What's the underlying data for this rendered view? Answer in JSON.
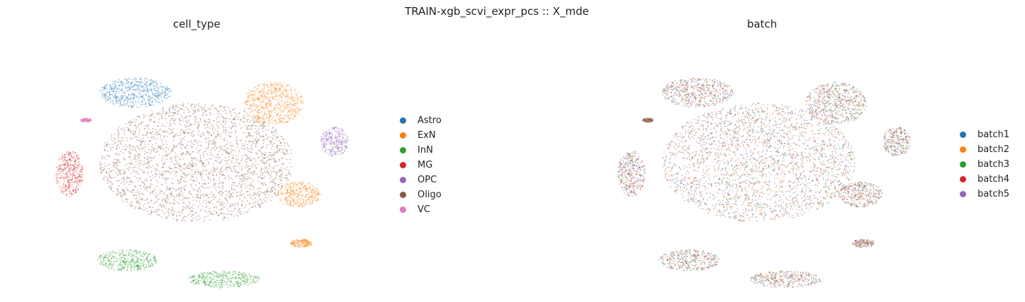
{
  "figure": {
    "suptitle": "TRAIN-xgb_scvi_expr_pcs :: X_mde"
  },
  "chart_data": [
    {
      "type": "scatter",
      "title": "cell_type",
      "xlabel": "",
      "ylabel": "",
      "grid": false,
      "axes_visible": false,
      "legend_position": "right",
      "legend": [
        {
          "label": "Astro",
          "color": "#1f77b4"
        },
        {
          "label": "ExN",
          "color": "#ff7f0e"
        },
        {
          "label": "InN",
          "color": "#2ca02c"
        },
        {
          "label": "MG",
          "color": "#d62728"
        },
        {
          "label": "OPC",
          "color": "#9467bd"
        },
        {
          "label": "Oligo",
          "color": "#8c564b"
        },
        {
          "label": "VC",
          "color": "#e377c2"
        }
      ],
      "clusters": [
        {
          "category": "Oligo",
          "color": "#8c564b",
          "cx": 0.0,
          "cy": 0.0,
          "rx": 0.35,
          "ry": 0.28
        },
        {
          "category": "Astro",
          "color": "#1f77b4",
          "cx": -0.22,
          "cy": 0.33,
          "rx": 0.13,
          "ry": 0.07
        },
        {
          "category": "ExN",
          "color": "#ff7f0e",
          "cx": 0.28,
          "cy": 0.28,
          "rx": 0.11,
          "ry": 0.1
        },
        {
          "category": "ExN",
          "color": "#ff7f0e",
          "cx": 0.37,
          "cy": -0.15,
          "rx": 0.08,
          "ry": 0.06
        },
        {
          "category": "ExN",
          "color": "#ff7f0e",
          "cx": 0.38,
          "cy": -0.38,
          "rx": 0.04,
          "ry": 0.02
        },
        {
          "category": "InN",
          "color": "#2ca02c",
          "cx": -0.25,
          "cy": -0.46,
          "rx": 0.11,
          "ry": 0.05
        },
        {
          "category": "InN",
          "color": "#2ca02c",
          "cx": 0.1,
          "cy": -0.55,
          "rx": 0.13,
          "ry": 0.04
        },
        {
          "category": "MG",
          "color": "#d62728",
          "cx": -0.46,
          "cy": -0.05,
          "rx": 0.05,
          "ry": 0.11
        },
        {
          "category": "OPC",
          "color": "#9467bd",
          "cx": 0.5,
          "cy": 0.1,
          "rx": 0.05,
          "ry": 0.07
        },
        {
          "category": "VC",
          "color": "#e377c2",
          "cx": -0.4,
          "cy": 0.2,
          "rx": 0.02,
          "ry": 0.01
        }
      ]
    },
    {
      "type": "scatter",
      "title": "batch",
      "xlabel": "",
      "ylabel": "",
      "grid": false,
      "axes_visible": false,
      "legend_position": "right",
      "legend": [
        {
          "label": "batch1",
          "color": "#1f77b4"
        },
        {
          "label": "batch2",
          "color": "#ff7f0e"
        },
        {
          "label": "batch3",
          "color": "#2ca02c"
        },
        {
          "label": "batch4",
          "color": "#d62728"
        },
        {
          "label": "batch5",
          "color": "#9467bd"
        }
      ]
    }
  ]
}
